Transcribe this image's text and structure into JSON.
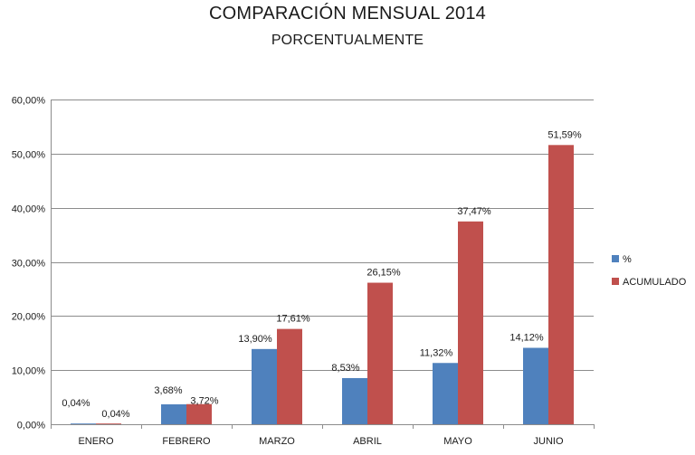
{
  "chart_data": {
    "type": "bar",
    "title": "COMPARACIÓN MENSUAL 2014",
    "subtitle": "PORCENTUALMENTE",
    "categories": [
      "ENERO",
      "FEBRERO",
      "MARZO",
      "ABRIL",
      "MAYO",
      "JUNIO"
    ],
    "series": [
      {
        "name": "%",
        "color": "#4F81BD",
        "values": [
          0.04,
          3.68,
          13.9,
          8.53,
          11.32,
          14.12
        ],
        "labels": [
          "0,04%",
          "3,68%",
          "13,90%",
          "8,53%",
          "11,32%",
          "14,12%"
        ]
      },
      {
        "name": "ACUMULADO",
        "color": "#C0504D",
        "values": [
          0.04,
          3.72,
          17.61,
          26.15,
          37.47,
          51.59
        ],
        "labels": [
          "0,04%",
          "3,72%",
          "17,61%",
          "26,15%",
          "37,47%",
          "51,59%"
        ]
      }
    ],
    "ylim": [
      0,
      60
    ],
    "yticks": [
      "0,00%",
      "10,00%",
      "20,00%",
      "30,00%",
      "40,00%",
      "50,00%",
      "60,00%"
    ],
    "grid": true,
    "legend": "right"
  }
}
